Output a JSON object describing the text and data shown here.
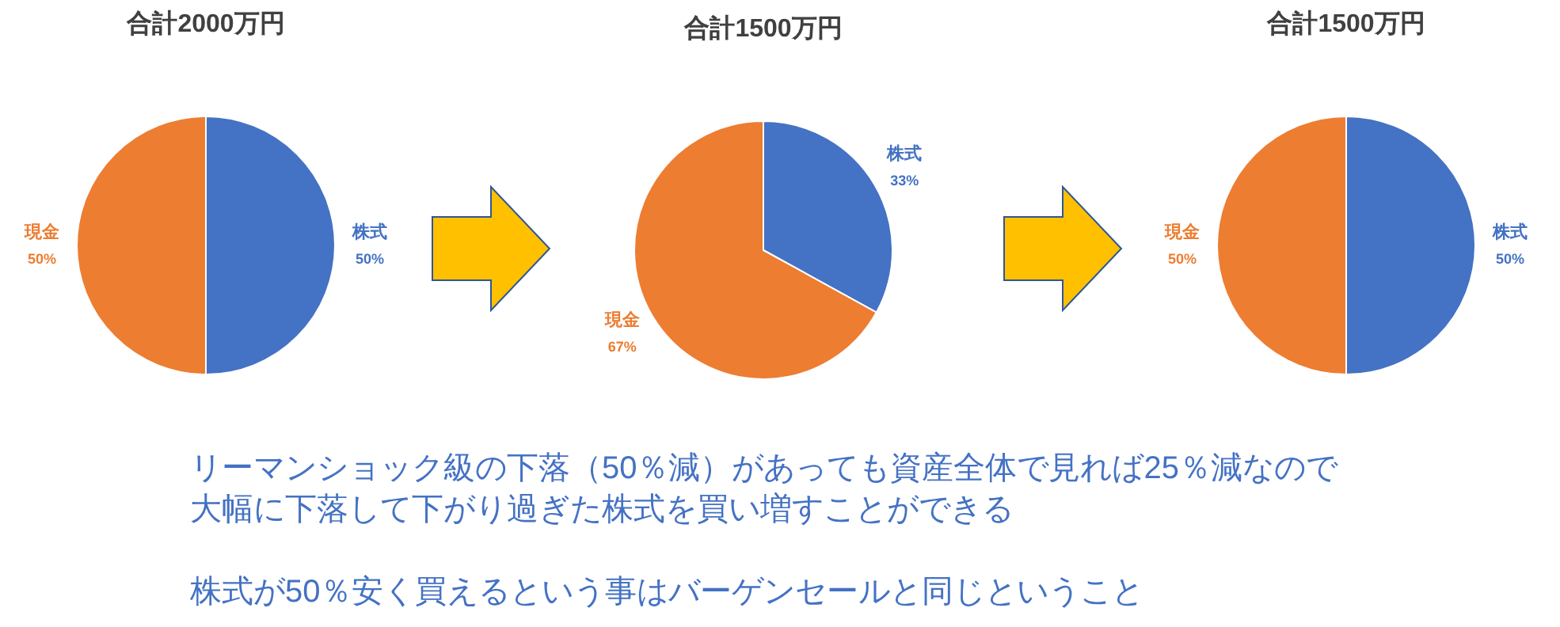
{
  "chart_data": [
    {
      "type": "pie",
      "title": "合計2000万円",
      "categories": [
        "株式",
        "現金"
      ],
      "values": [
        50,
        50
      ],
      "colors": [
        "#4472c4",
        "#ed7d31"
      ],
      "value_labels": [
        "50%",
        "50%"
      ]
    },
    {
      "type": "pie",
      "title": "合計1500万円",
      "categories": [
        "株式",
        "現金"
      ],
      "values": [
        33,
        67
      ],
      "colors": [
        "#4472c4",
        "#ed7d31"
      ],
      "value_labels": [
        "33%",
        "67%"
      ]
    },
    {
      "type": "pie",
      "title": "合計1500万円",
      "categories": [
        "株式",
        "現金"
      ],
      "values": [
        50,
        50
      ],
      "colors": [
        "#4472c4",
        "#ed7d31"
      ],
      "value_labels": [
        "50%",
        "50%"
      ]
    },
    {
      "type": "other",
      "annotations": [
        "リーマンショック級の下落（50％減）があっても資産全体で見れば25％減なので",
        "大幅に下落して下がり過ぎた株式を買い増すことができる",
        "株式が50％安く買えるという事はバーゲンセールと同じということ"
      ]
    }
  ]
}
